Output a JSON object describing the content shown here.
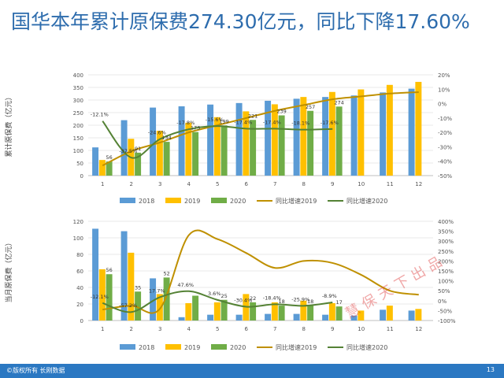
{
  "slide": {
    "title": "国华本年累计原保费274.30亿元，同比下降17.60%",
    "footer_left": "©版权所有 长刚数据",
    "page_number": "13",
    "watermark": "慧保天下出品"
  },
  "colors": {
    "y2018": "#5b9bd5",
    "y2019": "#ffc000",
    "y2020": "#70ad47",
    "g2019": "#bf9000",
    "g2020": "#548235",
    "title": "#2d6cad",
    "footer": "#2b78c2"
  },
  "chart_data": [
    {
      "type": "bar",
      "categories": [
        "1",
        "2",
        "3",
        "4",
        "5",
        "6",
        "7",
        "8",
        "9",
        "10",
        "11",
        "12"
      ],
      "ylabel": "累计原保费（亿元）",
      "ylim": [
        0,
        400
      ],
      "yticks": [
        0,
        50,
        100,
        150,
        200,
        250,
        300,
        350,
        400
      ],
      "y2lim": [
        -50,
        20
      ],
      "y2ticks": [
        -50,
        -40,
        -30,
        -20,
        -10,
        0,
        10,
        20
      ],
      "y2tick_labels": [
        "-50%",
        "-40%",
        "-30%",
        "-20%",
        "-10%",
        "0%",
        "10%",
        "20%"
      ],
      "grid": true,
      "legend": "bottom",
      "series": [
        {
          "name": "2018",
          "kind": "bar",
          "values": [
            112,
            220,
            270,
            275,
            282,
            288,
            297,
            305,
            312,
            318,
            330,
            345
          ]
        },
        {
          "name": "2019",
          "kind": "bar",
          "values": [
            62,
            146,
            178,
            210,
            232,
            255,
            283,
            312,
            332,
            342,
            360,
            372
          ]
        },
        {
          "name": "2020",
          "kind": "bar",
          "values": [
            56,
            91,
            134,
            173,
            199,
            221,
            239,
            257,
            274,
            null,
            null,
            null
          ]
        },
        {
          "name": "同比增速2019",
          "kind": "line",
          "axis": "right",
          "values": [
            -43,
            -33,
            -27,
            -20,
            -15,
            -10,
            -5,
            -1,
            3,
            5,
            7,
            8
          ]
        },
        {
          "name": "同比增速2020",
          "kind": "line",
          "axis": "right",
          "values": [
            -12.1,
            -37.5,
            -24.6,
            -17.8,
            -15.6,
            -17.4,
            -17.4,
            -18.1,
            -17.6,
            null,
            null,
            null
          ]
        }
      ],
      "data_labels": {
        "2020": [
          "56",
          "91",
          "134",
          "173",
          "199",
          "221",
          "239",
          "257",
          "274"
        ],
        "同比增速2020": [
          "-12.1%",
          "-37.5%",
          "-24.6%",
          "-17.8%",
          "-15.6%",
          "-17.4%",
          "-17.4%",
          "-18.1%",
          "-17.6%"
        ]
      }
    },
    {
      "type": "bar",
      "categories": [
        "1",
        "2",
        "3",
        "4",
        "5",
        "6",
        "7",
        "8",
        "9",
        "10",
        "11",
        "12"
      ],
      "ylabel": "当月原保费（亿元）",
      "ylim": [
        0,
        120
      ],
      "yticks": [
        0,
        20,
        40,
        60,
        80,
        100,
        120
      ],
      "y2lim": [
        -100,
        400
      ],
      "y2ticks": [
        -100,
        -50,
        0,
        50,
        100,
        150,
        200,
        250,
        300,
        350,
        400
      ],
      "y2tick_labels": [
        "-100%",
        "-50%",
        "0%",
        "50%",
        "100%",
        "150%",
        "200%",
        "250%",
        "300%",
        "350%",
        "400%"
      ],
      "grid": true,
      "legend": "bottom",
      "series": [
        {
          "name": "2018",
          "kind": "bar",
          "values": [
            111,
            108,
            51,
            4,
            7,
            7,
            8,
            8,
            7,
            6,
            13,
            12
          ]
        },
        {
          "name": "2019",
          "kind": "bar",
          "values": [
            62,
            82,
            32,
            21,
            22,
            32,
            22,
            24,
            21,
            12,
            18,
            14
          ]
        },
        {
          "name": "2020",
          "kind": "bar",
          "values": [
            56,
            35,
            52,
            30,
            25,
            22,
            18,
            18,
            17,
            null,
            null,
            null
          ]
        },
        {
          "name": "同比增速2019",
          "kind": "line",
          "axis": "right",
          "values": [
            -45,
            -25,
            -40,
            330,
            310,
            240,
            165,
            200,
            190,
            130,
            50,
            30
          ]
        },
        {
          "name": "同比增速2020",
          "kind": "line",
          "axis": "right",
          "values": [
            -12.1,
            -57.2,
            17.7,
            47.6,
            3.6,
            -30.4,
            -18.4,
            -25.9,
            -8.9,
            null,
            null,
            null
          ]
        }
      ],
      "data_labels": {
        "2020": [
          "56",
          "35",
          "52",
          "",
          "25",
          "22",
          "18",
          "18",
          "17"
        ],
        "同比增速2020": [
          "-12.1%",
          "-57.2%",
          "17.7%",
          "47.6%",
          "3.6%",
          "-30.4%",
          "-18.4%",
          "-25.9%",
          "-8.9%"
        ]
      }
    }
  ]
}
